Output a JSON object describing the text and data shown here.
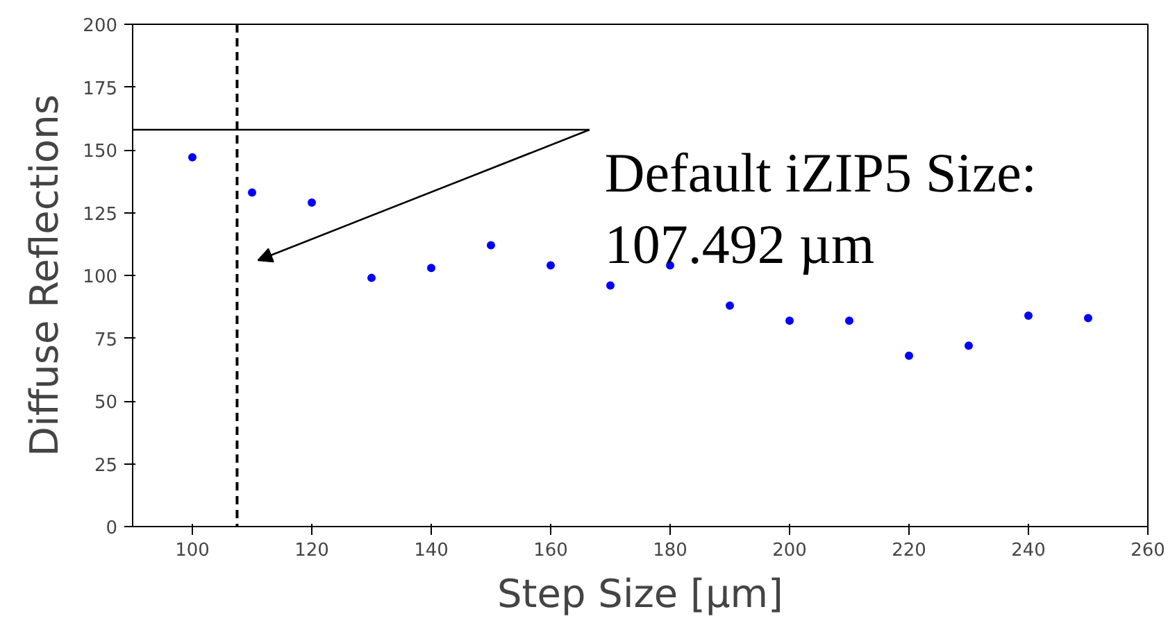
{
  "chart_data": {
    "type": "scatter",
    "xlabel": "Step Size [μm]",
    "ylabel": "Diffuse Reflections",
    "x": [
      100,
      110,
      120,
      130,
      140,
      150,
      160,
      170,
      180,
      190,
      200,
      210,
      220,
      230,
      240,
      250
    ],
    "series": [
      {
        "color": "#0000ff",
        "values": [
          147,
          133,
          129,
          99,
          103,
          112,
          104,
          96,
          104,
          88,
          82,
          82,
          68,
          72,
          84,
          83
        ]
      }
    ],
    "marker": "circle",
    "xlim": [
      90,
      260
    ],
    "ylim": [
      0,
      200
    ],
    "xticks": [
      100,
      120,
      140,
      160,
      180,
      200,
      220,
      240,
      260
    ],
    "yticks": [
      0,
      25,
      50,
      75,
      100,
      125,
      150,
      175,
      200
    ],
    "ref_lines": [
      {
        "axis": "x",
        "value": 107.492,
        "color": "#000000",
        "line_style": "dashed"
      }
    ],
    "annotations": [
      "Default iZIP5 Size:\n107.492 µm"
    ],
    "grid": false
  }
}
